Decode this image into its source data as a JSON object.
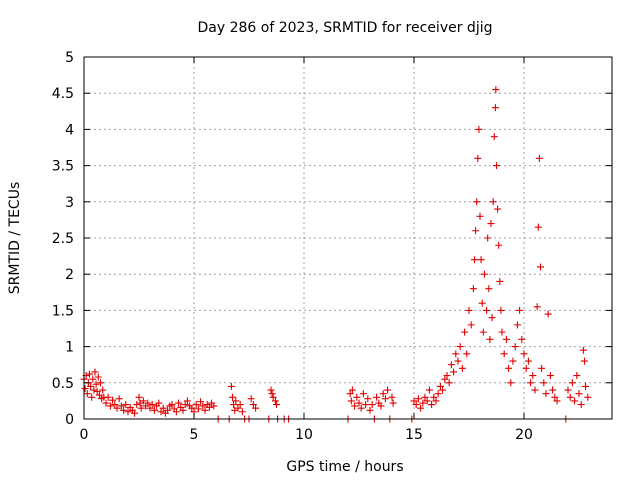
{
  "chart_data": {
    "type": "scatter",
    "title": "Day 286 of 2023, SRMTID for receiver djig",
    "xlabel": "GPS time / hours",
    "ylabel": "SRMTID / TECUs",
    "xlim": [
      0,
      24
    ],
    "ylim": [
      0,
      5
    ],
    "grid": true,
    "x_ticks": [
      {
        "value": 0,
        "label": "0"
      },
      {
        "value": 5,
        "label": "5"
      },
      {
        "value": 10,
        "label": "10"
      },
      {
        "value": 15,
        "label": "15"
      },
      {
        "value": 20,
        "label": "20"
      }
    ],
    "y_ticks": [
      {
        "value": 0,
        "label": "0"
      },
      {
        "value": 0.5,
        "label": "0.5"
      },
      {
        "value": 1,
        "label": "1"
      },
      {
        "value": 1.5,
        "label": "1.5"
      },
      {
        "value": 2,
        "label": "2"
      },
      {
        "value": 2.5,
        "label": "2.5"
      },
      {
        "value": 3,
        "label": "3"
      },
      {
        "value": 3.5,
        "label": "3.5"
      },
      {
        "value": 4,
        "label": "4"
      },
      {
        "value": 4.5,
        "label": "4.5"
      },
      {
        "value": 5,
        "label": "5"
      }
    ],
    "series": [
      {
        "name": "SRMTID",
        "marker": "plus",
        "color": "#e00000",
        "points": [
          [
            0.0,
            0.55
          ],
          [
            0.05,
            0.42
          ],
          [
            0.1,
            0.6
          ],
          [
            0.15,
            0.35
          ],
          [
            0.2,
            0.5
          ],
          [
            0.25,
            0.62
          ],
          [
            0.3,
            0.45
          ],
          [
            0.35,
            0.3
          ],
          [
            0.4,
            0.55
          ],
          [
            0.45,
            0.4
          ],
          [
            0.5,
            0.65
          ],
          [
            0.55,
            0.48
          ],
          [
            0.6,
            0.38
          ],
          [
            0.65,
            0.58
          ],
          [
            0.7,
            0.33
          ],
          [
            0.75,
            0.5
          ],
          [
            0.8,
            0.28
          ],
          [
            0.85,
            0.4
          ],
          [
            0.9,
            0.3
          ],
          [
            1.0,
            0.22
          ],
          [
            1.1,
            0.3
          ],
          [
            1.2,
            0.18
          ],
          [
            1.3,
            0.26
          ],
          [
            1.4,
            0.2
          ],
          [
            1.5,
            0.15
          ],
          [
            1.6,
            0.28
          ],
          [
            1.7,
            0.18
          ],
          [
            1.8,
            0.12
          ],
          [
            1.9,
            0.2
          ],
          [
            2.0,
            0.1
          ],
          [
            2.1,
            0.16
          ],
          [
            2.2,
            0.12
          ],
          [
            2.3,
            0.08
          ],
          [
            2.4,
            0.2
          ],
          [
            2.5,
            0.3
          ],
          [
            2.55,
            0.22
          ],
          [
            2.6,
            0.15
          ],
          [
            2.7,
            0.25
          ],
          [
            2.8,
            0.18
          ],
          [
            2.9,
            0.22
          ],
          [
            3.0,
            0.15
          ],
          [
            3.1,
            0.2
          ],
          [
            3.2,
            0.12
          ],
          [
            3.3,
            0.18
          ],
          [
            3.4,
            0.22
          ],
          [
            3.5,
            0.1
          ],
          [
            3.6,
            0.15
          ],
          [
            3.7,
            0.08
          ],
          [
            3.8,
            0.12
          ],
          [
            3.9,
            0.18
          ],
          [
            4.0,
            0.2
          ],
          [
            4.1,
            0.14
          ],
          [
            4.2,
            0.1
          ],
          [
            4.3,
            0.22
          ],
          [
            4.4,
            0.16
          ],
          [
            4.5,
            0.12
          ],
          [
            4.6,
            0.2
          ],
          [
            4.7,
            0.25
          ],
          [
            4.8,
            0.18
          ],
          [
            4.9,
            0.15
          ],
          [
            5.0,
            0.1
          ],
          [
            5.1,
            0.2
          ],
          [
            5.2,
            0.14
          ],
          [
            5.3,
            0.24
          ],
          [
            5.4,
            0.18
          ],
          [
            5.5,
            0.12
          ],
          [
            5.6,
            0.2
          ],
          [
            5.7,
            0.16
          ],
          [
            5.8,
            0.22
          ],
          [
            5.9,
            0.18
          ],
          [
            6.1,
            0.0
          ],
          [
            6.6,
            0.0
          ],
          [
            6.7,
            0.45
          ],
          [
            6.75,
            0.3
          ],
          [
            6.8,
            0.2
          ],
          [
            6.85,
            0.12
          ],
          [
            6.9,
            0.25
          ],
          [
            7.0,
            0.15
          ],
          [
            7.1,
            0.2
          ],
          [
            7.2,
            0.1
          ],
          [
            7.3,
            0.0
          ],
          [
            7.5,
            0.0
          ],
          [
            7.6,
            0.28
          ],
          [
            7.7,
            0.2
          ],
          [
            7.8,
            0.15
          ],
          [
            8.4,
            0.0
          ],
          [
            8.5,
            0.4
          ],
          [
            8.55,
            0.35
          ],
          [
            8.6,
            0.3
          ],
          [
            8.7,
            0.25
          ],
          [
            8.75,
            0.2
          ],
          [
            8.8,
            0.0
          ],
          [
            9.1,
            0.0
          ],
          [
            9.3,
            0.0
          ],
          [
            12.0,
            0.0
          ],
          [
            12.1,
            0.35
          ],
          [
            12.15,
            0.25
          ],
          [
            12.2,
            0.4
          ],
          [
            12.3,
            0.18
          ],
          [
            12.4,
            0.3
          ],
          [
            12.5,
            0.22
          ],
          [
            12.6,
            0.15
          ],
          [
            12.7,
            0.35
          ],
          [
            12.8,
            0.2
          ],
          [
            12.9,
            0.28
          ],
          [
            13.0,
            0.12
          ],
          [
            13.1,
            0.2
          ],
          [
            13.2,
            0.0
          ],
          [
            13.3,
            0.3
          ],
          [
            13.4,
            0.22
          ],
          [
            13.5,
            0.18
          ],
          [
            13.6,
            0.35
          ],
          [
            13.7,
            0.28
          ],
          [
            13.8,
            0.4
          ],
          [
            13.9,
            0.0
          ],
          [
            14.0,
            0.3
          ],
          [
            14.05,
            0.22
          ],
          [
            14.9,
            0.0
          ],
          [
            15.0,
            0.25
          ],
          [
            15.1,
            0.2
          ],
          [
            15.2,
            0.28
          ],
          [
            15.3,
            0.15
          ],
          [
            15.4,
            0.22
          ],
          [
            15.5,
            0.3
          ],
          [
            15.6,
            0.25
          ],
          [
            15.7,
            0.4
          ],
          [
            15.8,
            0.2
          ],
          [
            15.9,
            0.3
          ],
          [
            16.0,
            0.25
          ],
          [
            16.1,
            0.35
          ],
          [
            16.2,
            0.45
          ],
          [
            16.3,
            0.4
          ],
          [
            16.4,
            0.55
          ],
          [
            16.5,
            0.6
          ],
          [
            16.6,
            0.5
          ],
          [
            16.7,
            0.75
          ],
          [
            16.8,
            0.65
          ],
          [
            16.9,
            0.9
          ],
          [
            17.0,
            0.8
          ],
          [
            17.1,
            1.0
          ],
          [
            17.2,
            0.7
          ],
          [
            17.3,
            1.2
          ],
          [
            17.4,
            0.9
          ],
          [
            17.5,
            1.5
          ],
          [
            17.6,
            1.3
          ],
          [
            17.7,
            1.8
          ],
          [
            17.75,
            2.2
          ],
          [
            17.8,
            2.6
          ],
          [
            17.85,
            3.0
          ],
          [
            17.9,
            3.6
          ],
          [
            17.95,
            4.0
          ],
          [
            18.0,
            2.8
          ],
          [
            18.05,
            2.2
          ],
          [
            18.1,
            1.6
          ],
          [
            18.15,
            1.2
          ],
          [
            18.2,
            2.0
          ],
          [
            18.3,
            1.5
          ],
          [
            18.35,
            2.5
          ],
          [
            18.4,
            1.8
          ],
          [
            18.45,
            1.1
          ],
          [
            18.5,
            2.7
          ],
          [
            18.55,
            1.4
          ],
          [
            18.6,
            3.0
          ],
          [
            18.65,
            3.9
          ],
          [
            18.7,
            4.3
          ],
          [
            18.72,
            4.55
          ],
          [
            18.75,
            3.5
          ],
          [
            18.8,
            2.9
          ],
          [
            18.85,
            2.4
          ],
          [
            18.9,
            1.9
          ],
          [
            18.95,
            1.5
          ],
          [
            19.0,
            1.2
          ],
          [
            19.1,
            0.9
          ],
          [
            19.2,
            1.1
          ],
          [
            19.3,
            0.7
          ],
          [
            19.4,
            0.5
          ],
          [
            19.5,
            0.8
          ],
          [
            19.6,
            1.0
          ],
          [
            19.7,
            1.3
          ],
          [
            19.8,
            1.5
          ],
          [
            19.9,
            1.1
          ],
          [
            20.0,
            0.9
          ],
          [
            20.1,
            0.7
          ],
          [
            20.2,
            0.8
          ],
          [
            20.3,
            0.5
          ],
          [
            20.4,
            0.6
          ],
          [
            20.5,
            0.4
          ],
          [
            20.6,
            1.55
          ],
          [
            20.65,
            2.65
          ],
          [
            20.7,
            3.6
          ],
          [
            20.75,
            2.1
          ],
          [
            20.8,
            0.7
          ],
          [
            20.9,
            0.5
          ],
          [
            21.0,
            0.35
          ],
          [
            21.1,
            1.45
          ],
          [
            21.2,
            0.6
          ],
          [
            21.3,
            0.4
          ],
          [
            21.4,
            0.3
          ],
          [
            21.5,
            0.25
          ],
          [
            21.9,
            0.0
          ],
          [
            22.0,
            0.4
          ],
          [
            22.1,
            0.3
          ],
          [
            22.2,
            0.5
          ],
          [
            22.3,
            0.25
          ],
          [
            22.4,
            0.6
          ],
          [
            22.5,
            0.35
          ],
          [
            22.6,
            0.2
          ],
          [
            22.7,
            0.95
          ],
          [
            22.75,
            0.8
          ],
          [
            22.8,
            0.45
          ],
          [
            22.9,
            0.3
          ]
        ]
      }
    ]
  }
}
